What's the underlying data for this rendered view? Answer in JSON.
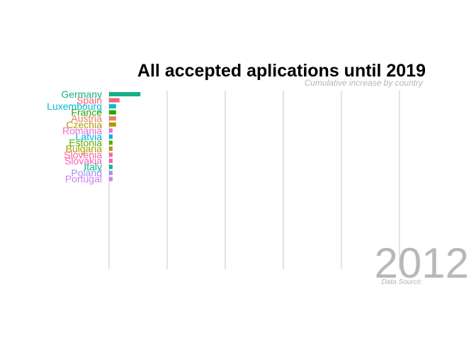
{
  "chart_data": {
    "type": "bar",
    "orientation": "horizontal",
    "title": "All accepted aplications until 2019",
    "subtitle": "Cumulative increase by country",
    "caption": "Data Source:",
    "year_label": "2012",
    "grid": true,
    "xlim": [
      0,
      100
    ],
    "categories": [
      "Germany",
      "Spain",
      "Luxembourg",
      "France",
      "Austria",
      "Czechia",
      "Romania",
      "Latvia",
      "Estonia",
      "Bulgaria",
      "Slovenia",
      "Slovakia",
      "Italy",
      "Poland",
      "Portugal"
    ],
    "values": [
      9,
      3,
      2,
      2,
      2,
      2,
      1,
      1,
      1,
      1,
      1,
      1,
      1,
      1,
      1
    ],
    "colors": [
      "#16b08a",
      "#f0657e",
      "#00b9d9",
      "#23a800",
      "#e5816c",
      "#b49700",
      "#e86cd5",
      "#00b1e3",
      "#5aac00",
      "#a59f00",
      "#fd6297",
      "#f161ba",
      "#00bd84",
      "#a28ef8",
      "#cf7ff4"
    ]
  }
}
